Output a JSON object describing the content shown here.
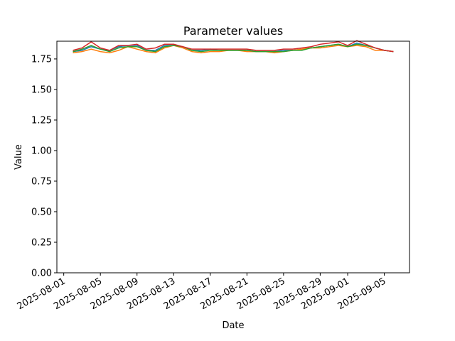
{
  "chart_data": {
    "type": "line",
    "title": "Parameter values",
    "x_label": "Date",
    "y_label": "Value",
    "x": [
      "2025-08-02",
      "2025-08-03",
      "2025-08-04",
      "2025-08-05",
      "2025-08-06",
      "2025-08-07",
      "2025-08-08",
      "2025-08-09",
      "2025-08-10",
      "2025-08-11",
      "2025-08-12",
      "2025-08-13",
      "2025-08-14",
      "2025-08-15",
      "2025-08-16",
      "2025-08-17",
      "2025-08-18",
      "2025-08-19",
      "2025-08-20",
      "2025-08-21",
      "2025-08-22",
      "2025-08-23",
      "2025-08-24",
      "2025-08-25",
      "2025-08-26",
      "2025-08-27",
      "2025-08-28",
      "2025-08-29",
      "2025-08-30",
      "2025-08-31",
      "2025-09-01",
      "2025-09-02",
      "2025-09-03",
      "2025-09-04",
      "2025-09-05",
      "2025-09-06"
    ],
    "series": [
      {
        "color": "#1f77b4",
        "values": [
          1.81,
          1.82,
          1.85,
          1.83,
          1.82,
          1.85,
          1.86,
          1.86,
          1.82,
          1.82,
          1.86,
          1.86,
          1.85,
          1.82,
          1.82,
          1.83,
          1.82,
          1.82,
          1.82,
          1.82,
          1.81,
          1.81,
          1.81,
          1.82,
          1.82,
          1.83,
          1.84,
          1.85,
          1.86,
          1.87,
          1.85,
          1.88,
          1.86,
          1.84,
          1.82,
          1.81
        ]
      },
      {
        "color": "#ff7f0e",
        "values": [
          1.8,
          1.81,
          1.83,
          1.81,
          1.8,
          1.82,
          1.85,
          1.83,
          1.81,
          1.8,
          1.84,
          1.86,
          1.84,
          1.81,
          1.8,
          1.81,
          1.81,
          1.82,
          1.82,
          1.81,
          1.81,
          1.81,
          1.8,
          1.81,
          1.82,
          1.83,
          1.84,
          1.84,
          1.85,
          1.86,
          1.85,
          1.86,
          1.85,
          1.82,
          1.82,
          1.81
        ]
      },
      {
        "color": "#2ca02c",
        "values": [
          1.81,
          1.83,
          1.86,
          1.83,
          1.81,
          1.84,
          1.85,
          1.85,
          1.82,
          1.81,
          1.85,
          1.86,
          1.85,
          1.82,
          1.81,
          1.82,
          1.82,
          1.82,
          1.82,
          1.82,
          1.81,
          1.81,
          1.81,
          1.81,
          1.82,
          1.82,
          1.84,
          1.85,
          1.86,
          1.87,
          1.85,
          1.87,
          1.86,
          1.84,
          1.82,
          1.81
        ]
      },
      {
        "color": "#d62728",
        "values": [
          1.82,
          1.84,
          1.89,
          1.84,
          1.82,
          1.86,
          1.86,
          1.87,
          1.83,
          1.84,
          1.87,
          1.87,
          1.85,
          1.83,
          1.83,
          1.83,
          1.83,
          1.83,
          1.83,
          1.83,
          1.82,
          1.82,
          1.82,
          1.83,
          1.83,
          1.84,
          1.85,
          1.87,
          1.88,
          1.89,
          1.86,
          1.9,
          1.87,
          1.84,
          1.82,
          1.81
        ]
      }
    ],
    "xlim": [
      "2025-07-31T06:00:00Z",
      "2025-09-07T18:00:00Z"
    ],
    "xticks": [
      "2025-08-01",
      "2025-08-05",
      "2025-08-09",
      "2025-08-13",
      "2025-08-17",
      "2025-08-21",
      "2025-08-25",
      "2025-08-29",
      "2025-09-01",
      "2025-09-05"
    ],
    "ylim": [
      0,
      1.895
    ],
    "yticks": [
      {
        "value": 0,
        "label": "0.00"
      },
      {
        "value": 0.25,
        "label": "0.25"
      },
      {
        "value": 0.5,
        "label": "0.50"
      },
      {
        "value": 0.75,
        "label": "0.75"
      },
      {
        "value": 1,
        "label": "1.00"
      },
      {
        "value": 1.25,
        "label": "1.25"
      },
      {
        "value": 1.5,
        "label": "1.50"
      },
      {
        "value": 1.75,
        "label": "1.75"
      }
    ],
    "grid": false
  }
}
